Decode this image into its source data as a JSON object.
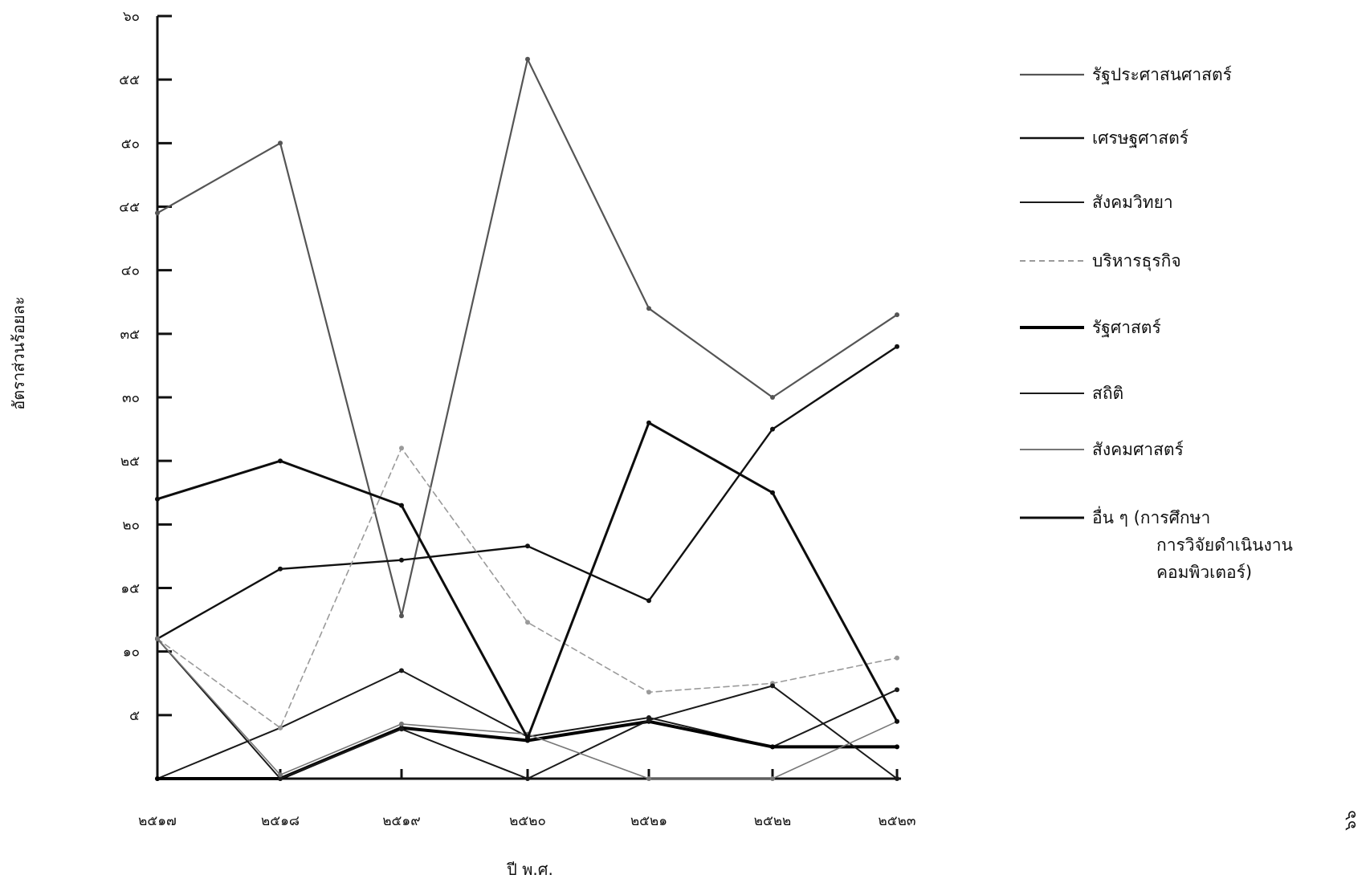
{
  "chart_data": {
    "type": "line",
    "title": "",
    "xlabel": "ปี พ.ศ.",
    "ylabel": "อัตราส่วนร้อยละ",
    "categories": [
      "๒๕๑๗",
      "๒๕๑๘",
      "๒๕๑๙",
      "๒๕๒๐",
      "๒๕๒๑",
      "๒๕๒๒",
      "๒๕๒๓"
    ],
    "ylim": [
      0,
      60
    ],
    "yticks": [
      {
        "value": 5,
        "label": "๕"
      },
      {
        "value": 10,
        "label": "๑๐"
      },
      {
        "value": 15,
        "label": "๑๕"
      },
      {
        "value": 20,
        "label": "๒๐"
      },
      {
        "value": 25,
        "label": "๒๕"
      },
      {
        "value": 30,
        "label": "๓๐"
      },
      {
        "value": 35,
        "label": "๓๕"
      },
      {
        "value": 40,
        "label": "๔๐"
      },
      {
        "value": 45,
        "label": "๔๕"
      },
      {
        "value": 50,
        "label": "๕๐"
      },
      {
        "value": 55,
        "label": "๕๕"
      },
      {
        "value": 60,
        "label": "๖๐"
      }
    ],
    "legend_position": "right",
    "series": [
      {
        "name": "รัฐประศาสนศาสตร์",
        "values": [
          44.5,
          50,
          12.8,
          56.6,
          37,
          30,
          36.5
        ],
        "color": "#555555",
        "dash": "",
        "width": 2.2
      },
      {
        "name": "เศรษฐศาสตร์",
        "values": [
          11,
          16.5,
          17.2,
          18.3,
          14,
          27.5,
          34
        ],
        "color": "#111111",
        "dash": "",
        "width": 2.4
      },
      {
        "name": "สังคมวิทยา",
        "values": [
          0,
          4,
          8.5,
          3.3,
          4.8,
          2.5,
          7
        ],
        "color": "#1a1a1a",
        "dash": "",
        "width": 2
      },
      {
        "name": "บริหารธุรกิจ",
        "values": [
          11,
          4,
          26,
          12.3,
          6.8,
          7.5,
          9.5
        ],
        "color": "#9a9a9a",
        "dash": "7,5",
        "width": 1.6
      },
      {
        "name": "รัฐศาสตร์",
        "values": [
          0,
          0,
          4,
          3,
          4.5,
          2.5,
          2.5
        ],
        "color": "#000000",
        "dash": "",
        "width": 4
      },
      {
        "name": "สถิติ",
        "values": [
          11,
          0,
          3.9,
          0,
          4.6,
          7.3,
          0
        ],
        "color": "#1a1a1a",
        "dash": "",
        "width": 2
      },
      {
        "name": "สังคมศาสตร์",
        "values": [
          11,
          0.3,
          4.3,
          3.5,
          0,
          0,
          4.5
        ],
        "color": "#777777",
        "dash": "",
        "width": 1.6
      },
      {
        "name": "อื่น ๆ (การศึกษา การวิจัยดำเนินงาน คอมพิวเตอร์)",
        "values": [
          22,
          25,
          21.5,
          3.2,
          28,
          22.5,
          4.5
        ],
        "color": "#0d0d0d",
        "dash": "",
        "width": 3
      }
    ]
  },
  "legend": [
    {
      "lines": [
        "รัฐประศาสนศาสตร์"
      ]
    },
    {
      "lines": [
        "เศรษฐศาสตร์"
      ]
    },
    {
      "lines": [
        "สังคมวิทยา"
      ]
    },
    {
      "lines": [
        "บริหารธุรกิจ"
      ]
    },
    {
      "lines": [
        "รัฐศาสตร์"
      ]
    },
    {
      "lines": [
        "สถิติ"
      ]
    },
    {
      "lines": [
        "สังคมศาสตร์"
      ]
    },
    {
      "lines": [
        "อื่น ๆ (การศึกษา",
        "การวิจัยดำเนินงาน",
        "คอมพิวเตอร์)"
      ]
    }
  ],
  "page_number": "๖๖"
}
